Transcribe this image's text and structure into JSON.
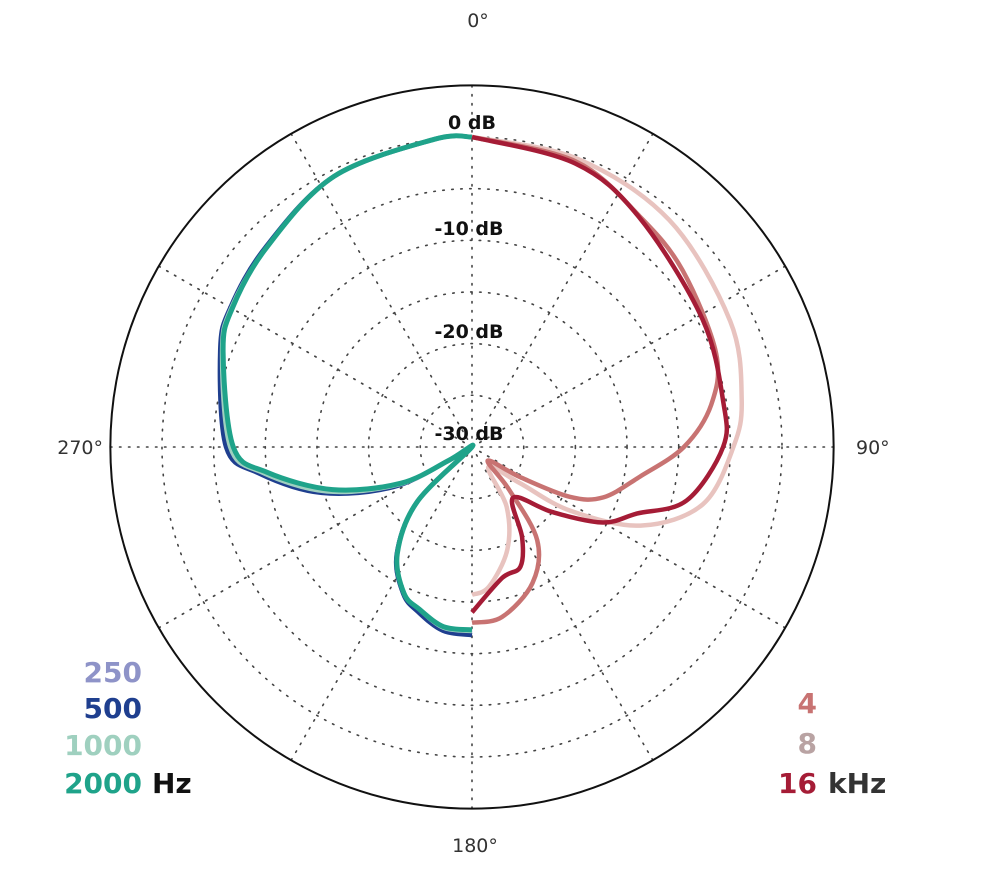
{
  "chart_data": {
    "type": "polar-line",
    "angle_ticks": [
      {
        "label": "0°",
        "angle": 0
      },
      {
        "label": "90°",
        "angle": 90
      },
      {
        "label": "180°",
        "angle": 180
      },
      {
        "label": "270°",
        "angle": 270
      }
    ],
    "radial_labels": [
      {
        "label": "0 dB",
        "db": 0
      },
      {
        "label": "-10 dB",
        "db": -10
      },
      {
        "label": "-20 dB",
        "db": -20
      },
      {
        "label": "-30 dB",
        "db": -30
      }
    ],
    "radial_range_db": [
      -30,
      5
    ],
    "radial_grid_step_db": 5,
    "angular_grid_step_deg": 30,
    "grid": true,
    "legend_left": {
      "unit": "Hz",
      "entries": [
        "250",
        "500",
        "1000",
        "2000"
      ]
    },
    "legend_right": {
      "unit": "kHz",
      "entries": [
        "4",
        "8",
        "16"
      ]
    },
    "series": [
      {
        "name": "250",
        "unit": "Hz",
        "color": "#8e93c8",
        "points": [
          [
            360,
            0
          ],
          [
            353,
            0
          ],
          [
            333,
            -0.6
          ],
          [
            314,
            -2.3
          ],
          [
            300,
            -3.2
          ],
          [
            291,
            -4.1
          ],
          [
            270,
            -6.4
          ],
          [
            263,
            -9.5
          ],
          [
            253,
            -15.2
          ],
          [
            243,
            -22
          ],
          [
            240,
            -27.5
          ],
          [
            236,
            -30
          ],
          [
            225,
            -22.5
          ],
          [
            215,
            -17.3
          ],
          [
            205,
            -14.3
          ],
          [
            198,
            -13.3
          ],
          [
            189,
            -12.2
          ],
          [
            180,
            -12.0
          ]
        ]
      },
      {
        "name": "500",
        "unit": "Hz",
        "color": "#1f3f8f",
        "points": [
          [
            360,
            0
          ],
          [
            353,
            0
          ],
          [
            333,
            -0.6
          ],
          [
            314,
            -2.2
          ],
          [
            300,
            -3.0
          ],
          [
            291,
            -3.9
          ],
          [
            270,
            -6.2
          ],
          [
            263,
            -9.2
          ],
          [
            253,
            -14.8
          ],
          [
            243,
            -21.5
          ],
          [
            240,
            -27.5
          ],
          [
            236,
            -30
          ],
          [
            225,
            -22.5
          ],
          [
            215,
            -17.3
          ],
          [
            205,
            -14.3
          ],
          [
            198,
            -13.2
          ],
          [
            189,
            -12.0
          ],
          [
            180,
            -11.8
          ]
        ]
      },
      {
        "name": "1000",
        "unit": "Hz",
        "color": "#9fd0bf",
        "points": [
          [
            360,
            0
          ],
          [
            353,
            0
          ],
          [
            333,
            -0.6
          ],
          [
            314,
            -2.3
          ],
          [
            300,
            -3.1
          ],
          [
            291,
            -4.1
          ],
          [
            270,
            -6.6
          ],
          [
            263,
            -9.6
          ],
          [
            253,
            -15.3
          ],
          [
            243,
            -22
          ],
          [
            240,
            -27.5
          ],
          [
            236,
            -30
          ],
          [
            225,
            -22.5
          ],
          [
            215,
            -17.4
          ],
          [
            205,
            -14.4
          ],
          [
            198,
            -13.5
          ],
          [
            189,
            -12.3
          ],
          [
            180,
            -12.2
          ]
        ]
      },
      {
        "name": "2000",
        "unit": "Hz",
        "color": "#1fa38a",
        "points": [
          [
            360,
            0
          ],
          [
            353,
            0
          ],
          [
            333,
            -0.6
          ],
          [
            314,
            -2.3
          ],
          [
            300,
            -3.2
          ],
          [
            291,
            -4.2
          ],
          [
            270,
            -6.9
          ],
          [
            263,
            -10
          ],
          [
            253,
            -15.9
          ],
          [
            243,
            -22.3
          ],
          [
            240,
            -27.5
          ],
          [
            236,
            -30
          ],
          [
            225,
            -22.5
          ],
          [
            215,
            -17.4
          ],
          [
            205,
            -14.4
          ],
          [
            198,
            -13.5
          ],
          [
            189,
            -12.4
          ],
          [
            180,
            -12.3
          ]
        ]
      },
      {
        "name": "8",
        "unit": "kHz",
        "color": "#e8c3bf",
        "points": [
          [
            0,
            0
          ],
          [
            20,
            -0.3
          ],
          [
            41,
            -0.9
          ],
          [
            64,
            -2.2
          ],
          [
            80,
            -3.5
          ],
          [
            90,
            -4.7
          ],
          [
            104,
            -7
          ],
          [
            115,
            -12
          ],
          [
            123,
            -18.7
          ],
          [
            127,
            -24.2
          ],
          [
            141,
            -27.5
          ],
          [
            150,
            -23.3
          ],
          [
            161,
            -19.5
          ],
          [
            173,
            -16.4
          ],
          [
            180,
            -15.7
          ]
        ]
      },
      {
        "name": "4",
        "unit": "kHz",
        "color": "#c87372",
        "points": [
          [
            0,
            0
          ],
          [
            20,
            -0.6
          ],
          [
            36,
            -2.4
          ],
          [
            50,
            -3.4
          ],
          [
            69,
            -4.7
          ],
          [
            80,
            -6.5
          ],
          [
            90,
            -9.5
          ],
          [
            100,
            -13.5
          ],
          [
            111,
            -16.4
          ],
          [
            117,
            -19.4
          ],
          [
            122,
            -24.5
          ],
          [
            131,
            -28
          ],
          [
            139,
            -24.5
          ],
          [
            145,
            -19
          ],
          [
            156,
            -15.6
          ],
          [
            170,
            -13.3
          ],
          [
            180,
            -13
          ]
        ]
      },
      {
        "name": "16",
        "unit": "kHz",
        "color": "#a51c36",
        "points": [
          [
            0,
            0
          ],
          [
            20,
            -0.8
          ],
          [
            36,
            -2.5
          ],
          [
            61,
            -4.5
          ],
          [
            80,
            -5.3
          ],
          [
            90,
            -5.7
          ],
          [
            104,
            -8.6
          ],
          [
            112,
            -12.8
          ],
          [
            120,
            -15.4
          ],
          [
            129,
            -20
          ],
          [
            141,
            -23.7
          ],
          [
            151,
            -20
          ],
          [
            158,
            -17.5
          ],
          [
            167,
            -17
          ],
          [
            180,
            -14
          ]
        ]
      }
    ]
  }
}
